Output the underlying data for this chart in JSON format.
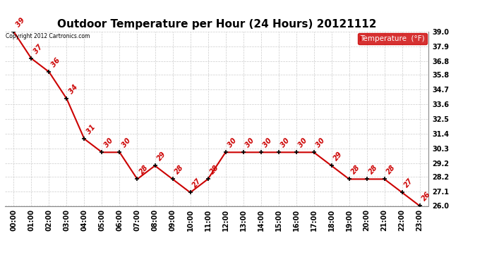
{
  "title": "Outdoor Temperature per Hour (24 Hours) 20121112",
  "copyright_text": "Copyright 2012 Cartronics.com",
  "legend_label": "Temperature  (°F)",
  "hours": [
    "00:00",
    "01:00",
    "02:00",
    "03:00",
    "04:00",
    "05:00",
    "06:00",
    "07:00",
    "08:00",
    "09:00",
    "10:00",
    "11:00",
    "12:00",
    "13:00",
    "14:00",
    "15:00",
    "16:00",
    "17:00",
    "18:00",
    "19:00",
    "20:00",
    "21:00",
    "22:00",
    "23:00"
  ],
  "temperatures": [
    39,
    37,
    36,
    34,
    31,
    30,
    30,
    28,
    29,
    28,
    27,
    28,
    30,
    30,
    30,
    30,
    30,
    30,
    29,
    28,
    28,
    28,
    27,
    26
  ],
  "ylim_min": 26.0,
  "ylim_max": 39.0,
  "yticks": [
    26.0,
    27.1,
    28.2,
    29.2,
    30.3,
    31.4,
    32.5,
    33.6,
    34.7,
    35.8,
    36.8,
    37.9,
    39.0
  ],
  "line_color": "#cc0000",
  "marker_color": "#000000",
  "label_color": "#cc0000",
  "background_color": "#ffffff",
  "grid_color": "#cccccc",
  "title_fontsize": 11,
  "tick_fontsize": 7,
  "legend_bg_color": "#cc0000",
  "legend_text_color": "#ffffff"
}
